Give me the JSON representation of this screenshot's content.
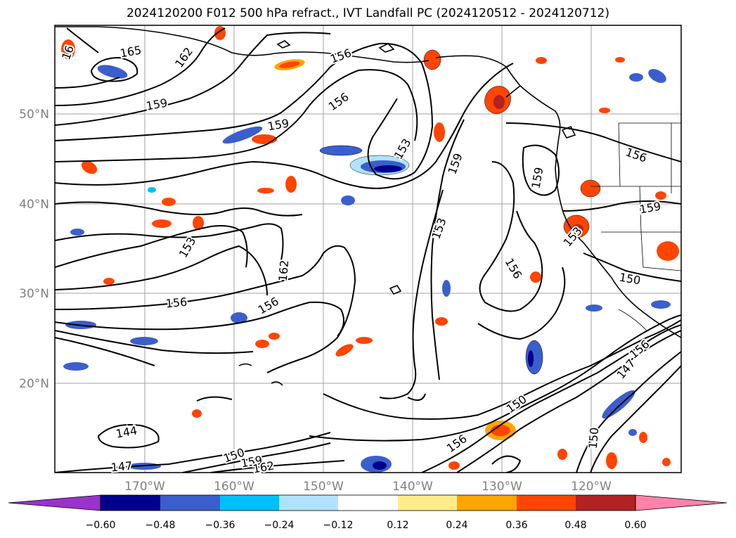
{
  "title": "2024120200 F012 500 hPa refract., IVT Landfall PC (2024120512 - 2024120712)",
  "lat_labels": [
    "50°N",
    "40°N",
    "30°N",
    "20°N"
  ],
  "lon_labels": [
    "170°W",
    "160°W",
    "150°W",
    "140°W",
    "130°W",
    "120°W"
  ],
  "contour_labels": [
    {
      "text": "165",
      "angle": -10
    },
    {
      "text": "162",
      "angle": -55
    },
    {
      "text": "16",
      "angle": -70
    },
    {
      "text": "159",
      "angle": -10
    },
    {
      "text": "156",
      "angle": -20
    },
    {
      "text": "156",
      "angle": -35
    },
    {
      "text": "159",
      "angle": -10
    },
    {
      "text": "153",
      "angle": -60
    },
    {
      "text": "159",
      "angle": -70
    },
    {
      "text": "159",
      "angle": -80
    },
    {
      "text": "156",
      "angle": 20
    },
    {
      "text": "159",
      "angle": -10
    },
    {
      "text": "153",
      "angle": -50
    },
    {
      "text": "153",
      "angle": -70
    },
    {
      "text": "153",
      "angle": -60
    },
    {
      "text": "162",
      "angle": -85
    },
    {
      "text": "156",
      "angle": -5
    },
    {
      "text": "156",
      "angle": -30
    },
    {
      "text": "156",
      "angle": 60
    },
    {
      "text": "150",
      "angle": 10
    },
    {
      "text": "156",
      "angle": -40
    },
    {
      "text": "147",
      "angle": -50
    },
    {
      "text": "144",
      "angle": -10
    },
    {
      "text": "147",
      "angle": -5
    },
    {
      "text": "150",
      "angle": -20
    },
    {
      "text": "159",
      "angle": -10
    },
    {
      "text": "162",
      "angle": -10
    },
    {
      "text": "156",
      "angle": -35
    },
    {
      "text": "150",
      "angle": -35
    },
    {
      "text": "150",
      "angle": -85
    }
  ],
  "colorbar": {
    "ticks": [
      "−0.60",
      "−0.48",
      "−0.36",
      "−0.24",
      "−0.12",
      "0.12",
      "0.24",
      "0.36",
      "0.48",
      "0.60"
    ],
    "colors": [
      "#9a32cd",
      "#00008b",
      "#3a5fcd",
      "#00bfff",
      "#b0e2ff",
      "#ffffff",
      "#ffec8b",
      "#ffa500",
      "#ff4500",
      "#b22222",
      "#ff82ab"
    ]
  },
  "shading_colors": {
    "dark_blue": "#00008b",
    "mid_blue": "#3a5fcd",
    "light_blue": "#00bfff",
    "pale_blue": "#b0e2ff",
    "yellow": "#ffec8b",
    "orange": "#ffa500",
    "red_orange": "#ff4500",
    "dark_red": "#b22222"
  }
}
